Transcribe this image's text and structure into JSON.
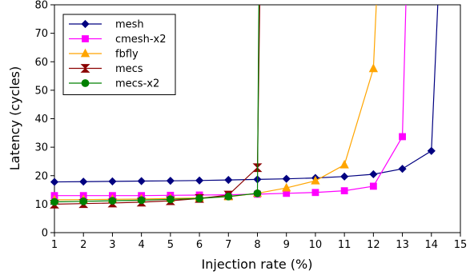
{
  "chart_data": {
    "type": "line",
    "xlabel": "Injection rate (%)",
    "ylabel": "Latency (cycles)",
    "xlim": [
      1,
      15
    ],
    "ylim": [
      0,
      80
    ],
    "xticks": [
      1,
      2,
      3,
      4,
      5,
      6,
      7,
      8,
      9,
      10,
      11,
      12,
      13,
      14,
      15
    ],
    "yticks": [
      0,
      10,
      20,
      30,
      40,
      50,
      60,
      70,
      80
    ],
    "grid": false,
    "legend_position": "top-left",
    "series": [
      {
        "name": "mesh",
        "color": "#000080",
        "marker": "diamond",
        "x": [
          1,
          2,
          3,
          4,
          5,
          6,
          7,
          8,
          9,
          10,
          11,
          12,
          13,
          14
        ],
        "y": [
          17.8,
          17.9,
          18.0,
          18.1,
          18.2,
          18.3,
          18.5,
          18.7,
          18.9,
          19.2,
          19.7,
          20.5,
          22.4,
          28.7
        ],
        "saturation": [
          14.22,
          80
        ]
      },
      {
        "name": "cmesh-x2",
        "color": "#ff00ff",
        "marker": "square",
        "x": [
          1,
          2,
          3,
          4,
          5,
          6,
          7,
          8,
          9,
          10,
          11,
          12,
          13
        ],
        "y": [
          13.0,
          13.0,
          13.0,
          13.0,
          13.1,
          13.2,
          13.3,
          13.5,
          13.8,
          14.1,
          14.7,
          16.3,
          33.7
        ],
        "saturation": [
          13.12,
          80
        ]
      },
      {
        "name": "fbfly",
        "color": "#ffa500",
        "marker": "triangle",
        "x": [
          1,
          2,
          3,
          4,
          5,
          6,
          7,
          8,
          9,
          10,
          11,
          12
        ],
        "y": [
          11.5,
          11.6,
          11.7,
          11.8,
          12.0,
          12.2,
          12.6,
          13.8,
          15.7,
          18.2,
          23.8,
          57.6
        ],
        "saturation": [
          12.1,
          80
        ]
      },
      {
        "name": "mecs",
        "color": "#8b0000",
        "marker": "hourglass",
        "x": [
          1,
          2,
          3,
          4,
          5,
          6,
          7,
          8
        ],
        "y": [
          10.0,
          10.2,
          10.4,
          10.7,
          11.2,
          12.0,
          13.2,
          22.8
        ],
        "saturation": [
          8.08,
          80
        ]
      },
      {
        "name": "mecs-x2",
        "color": "#008000",
        "marker": "circle",
        "x": [
          1,
          2,
          3,
          4,
          5,
          6,
          7,
          8
        ],
        "y": [
          10.8,
          11.0,
          11.2,
          11.4,
          11.7,
          12.0,
          12.7,
          13.8
        ],
        "saturation": [
          8.05,
          80
        ]
      }
    ]
  }
}
